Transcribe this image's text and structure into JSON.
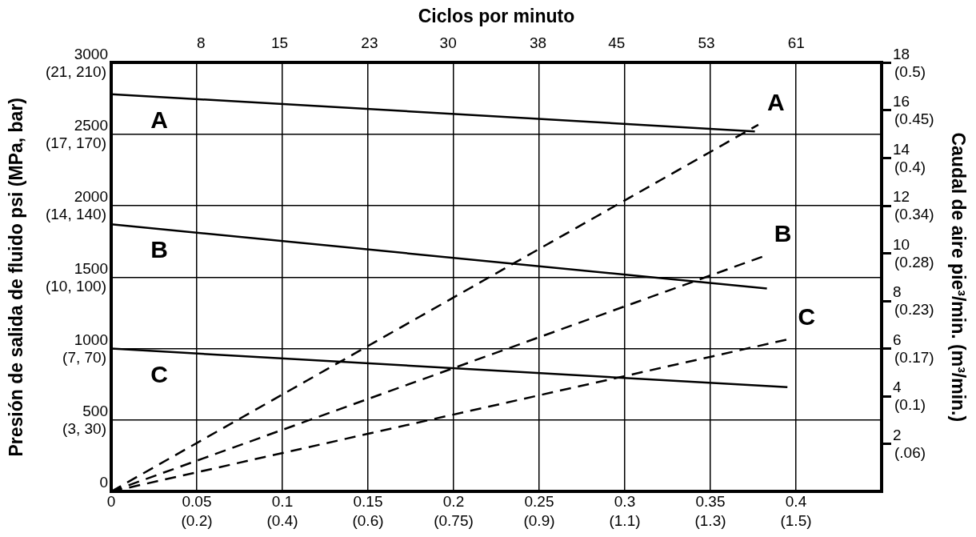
{
  "chart_data": {
    "type": "line",
    "x2label": "Ciclos por minuto",
    "ylabel": "Presión de salida de fluido psi (MPa, bar)",
    "y2label": "Caudal de aire pie³/min. (m³/min.)",
    "xlim": [
      0,
      0.45
    ],
    "xticks": [
      0,
      0.05,
      0.1,
      0.15,
      0.2,
      0.25,
      0.3,
      0.35,
      0.4
    ],
    "x2lim": [
      0,
      68.6
    ],
    "x2ticks": [
      8,
      15,
      23,
      30,
      38,
      45,
      53,
      61
    ],
    "ylim": [
      0,
      3000
    ],
    "yticks": [
      0,
      500,
      1000,
      1500,
      2000,
      2500,
      3000
    ],
    "y2lim": [
      0,
      18
    ],
    "y2ticks": [
      2,
      4,
      6,
      8,
      10,
      12,
      14,
      16,
      18
    ],
    "grid": true,
    "marker": "none",
    "series": [
      {
        "name": "A",
        "color": "#000000",
        "line_style": "solid",
        "x": [
          0,
          0.376
        ],
        "values": [
          2780,
          2520
        ]
      },
      {
        "name": "B",
        "color": "#000000",
        "line_style": "solid",
        "x": [
          0,
          0.383
        ],
        "values": [
          1870,
          1420
        ]
      },
      {
        "name": "C",
        "color": "#000000",
        "line_style": "solid",
        "x": [
          0,
          0.395
        ],
        "values": [
          1000,
          730
        ]
      },
      {
        "name": "A",
        "color": "#000000",
        "line_style": "dashed",
        "axis": "y2",
        "x": [
          0,
          0.378
        ],
        "values": [
          0,
          15.4
        ]
      },
      {
        "name": "B",
        "color": "#000000",
        "line_style": "dashed",
        "axis": "y2",
        "x": [
          0,
          0.382
        ],
        "values": [
          0,
          9.9
        ]
      },
      {
        "name": "C",
        "color": "#000000",
        "line_style": "dashed",
        "axis": "y2",
        "x": [
          0,
          0.396
        ],
        "values": [
          0,
          6.4
        ]
      }
    ],
    "annotations": [
      "(0.2)",
      "(0.4)",
      "(0.6)",
      "(0.75)",
      "(0.9)",
      "(1.1)",
      "(1.3)",
      "(1.5)",
      "(3, 30)",
      "(7, 70)",
      "(10, 100)",
      "(14, 140)",
      "(17, 170)",
      "(21, 210)",
      "(.06)",
      "(0.1)",
      "(0.17)",
      "(0.23)",
      "(0.28)",
      "(0.34)",
      "(0.4)",
      "(0.45)",
      "(0.5)"
    ]
  }
}
